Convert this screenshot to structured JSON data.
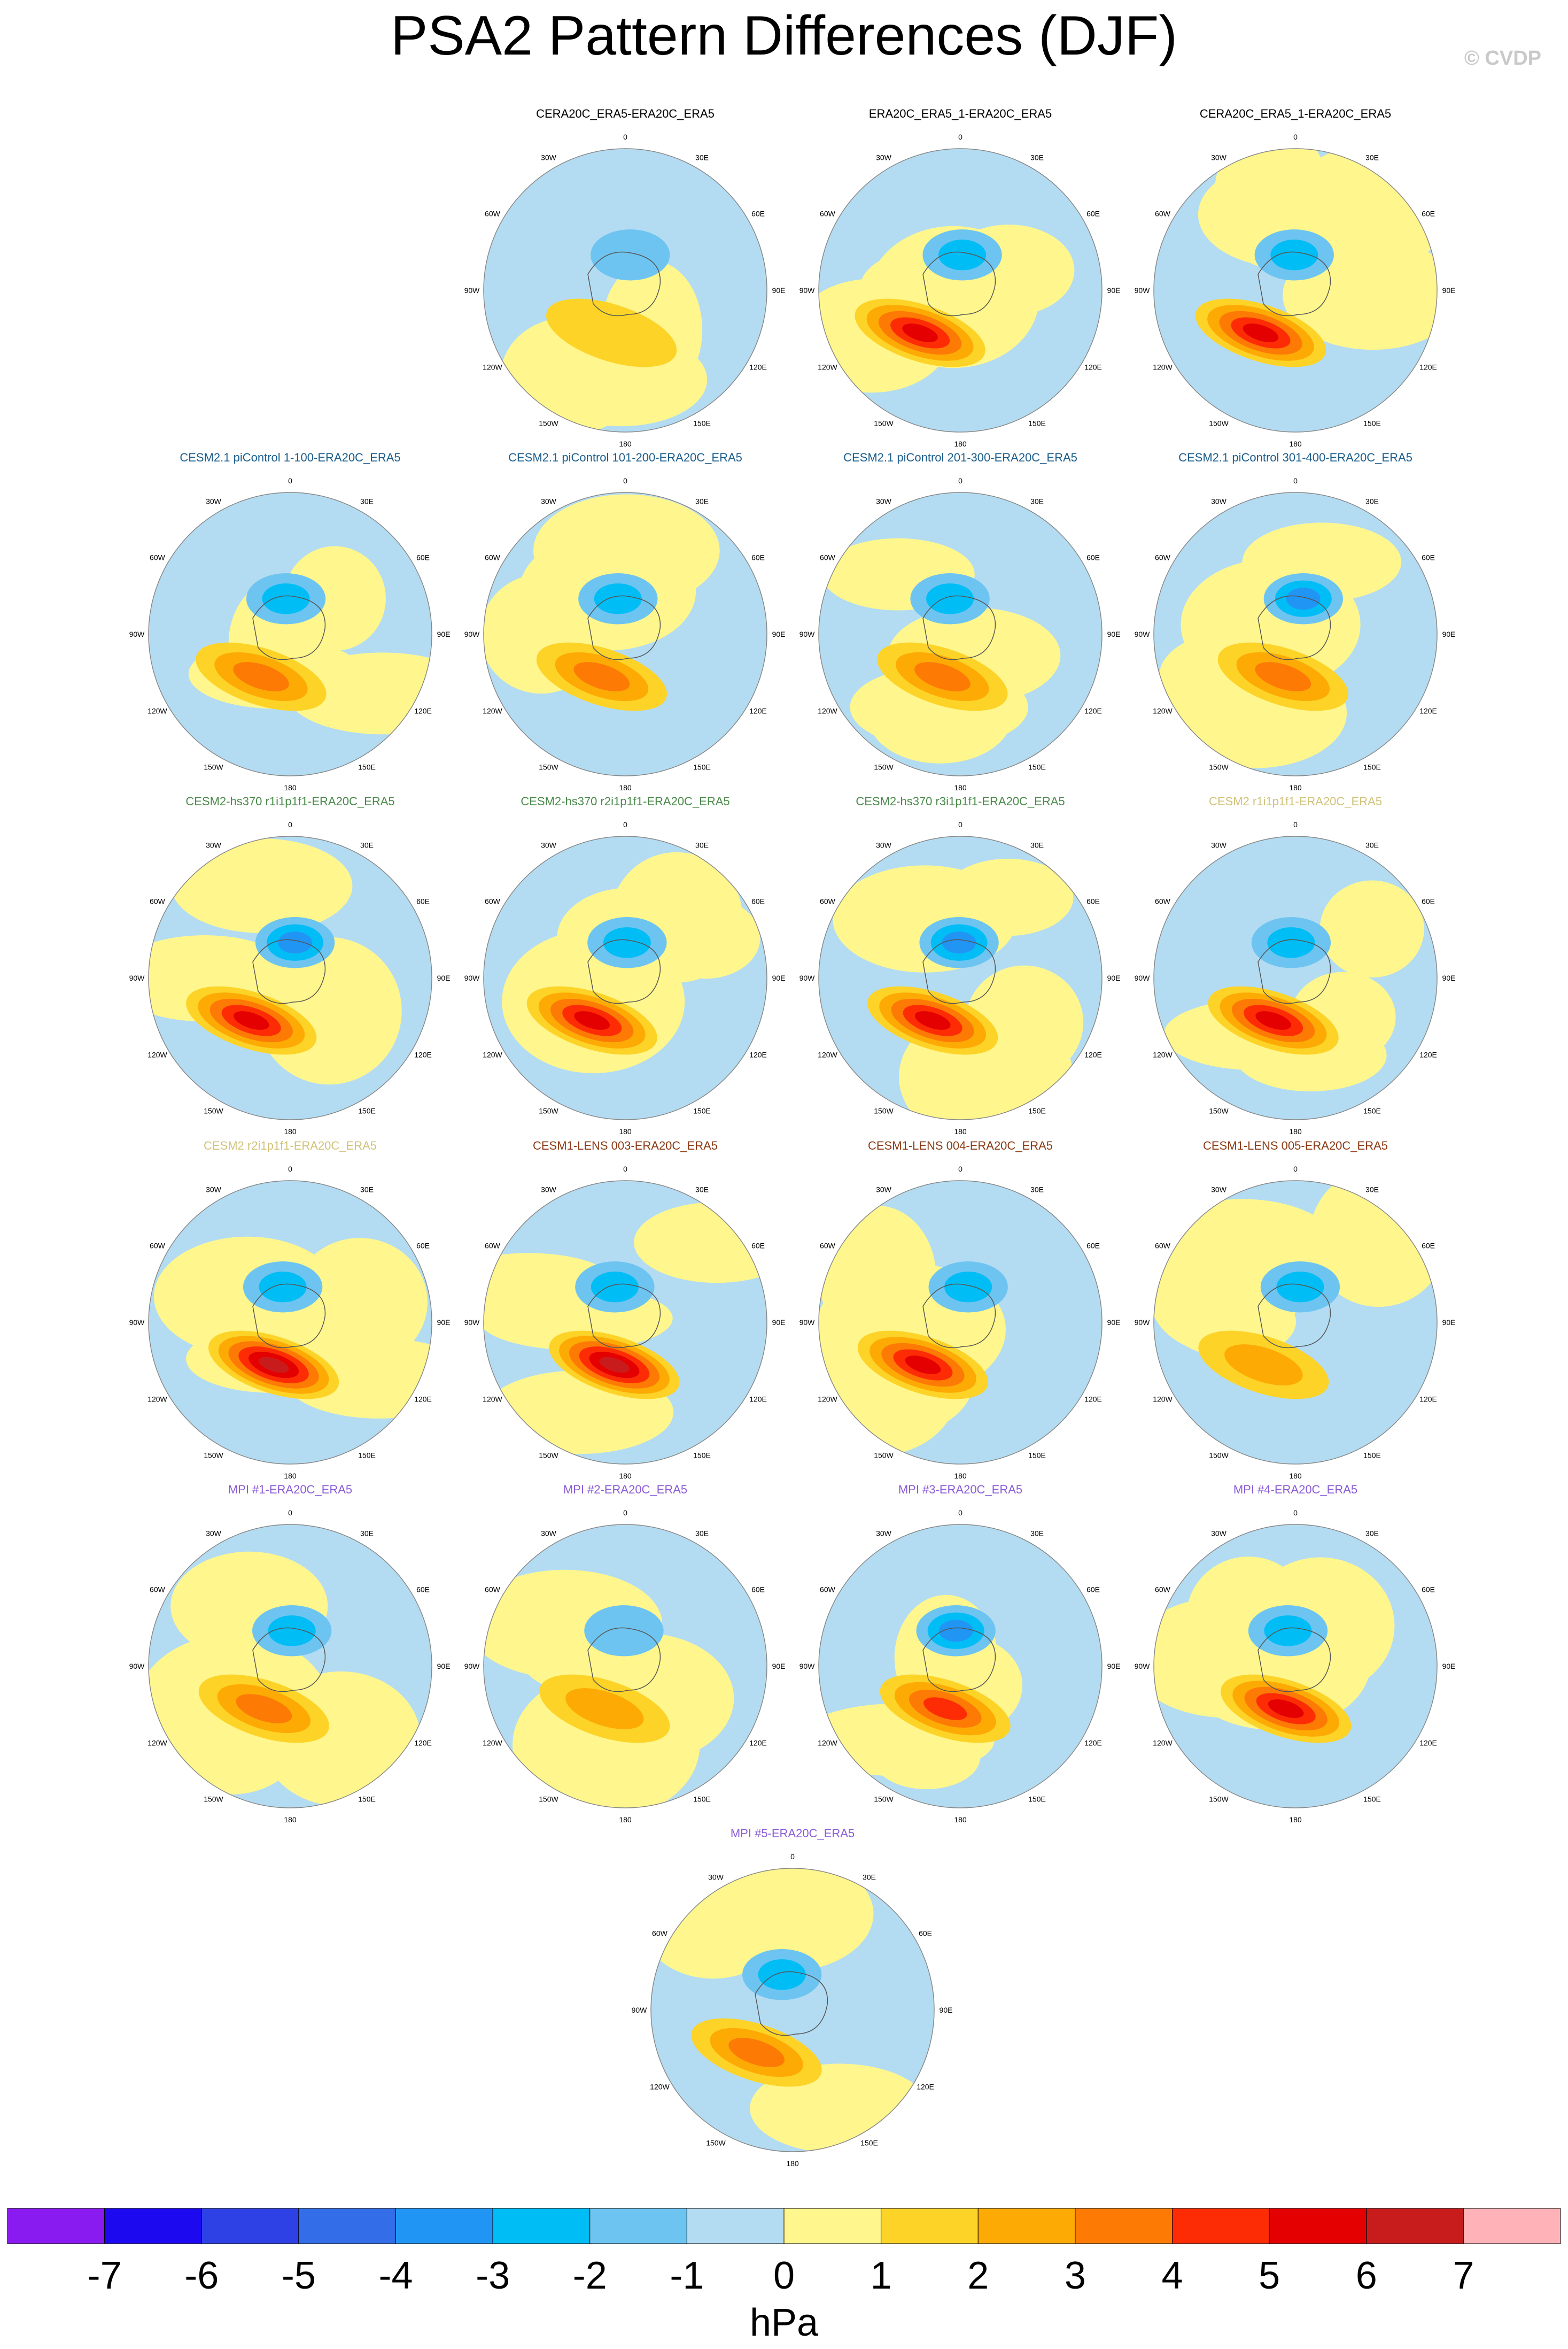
{
  "title": "PSA2 Pattern Differences (DJF)",
  "watermark": "© CVDP",
  "map_labels": {
    "top": "0",
    "upper_left": "30W",
    "upper_right": "30E",
    "left_up": "60W",
    "right_up": "60E",
    "left": "90W",
    "right": "90E",
    "left_down": "120W",
    "right_down": "120E",
    "lower_left": "150W",
    "lower_right": "150E",
    "bottom": "180"
  },
  "colorbar": {
    "unit": "hPa",
    "tick_labels": [
      "-7",
      "-6",
      "-5",
      "-4",
      "-3",
      "-2",
      "-1",
      "0",
      "1",
      "2",
      "3",
      "4",
      "5",
      "6",
      "7"
    ],
    "colors": [
      "#8a1bf0",
      "#1d09f0",
      "#2e41e4",
      "#336ee8",
      "#2195f3",
      "#00bdf6",
      "#6ec4f0",
      "#b3dcf2",
      "#fff68d",
      "#fdd327",
      "#fdaa05",
      "#fd7a05",
      "#fd2c05",
      "#e40000",
      "#c81c1c",
      "#ffb3b8"
    ],
    "levels": [
      -7,
      -6,
      -5,
      -4,
      -3,
      -2,
      -1,
      0,
      1,
      2,
      3,
      4,
      5,
      6,
      7
    ]
  },
  "chart_data": {
    "type": "heatmap",
    "title": "PSA2 Pattern Differences (DJF)",
    "projection": "south polar stereographic",
    "variable": "PSA2 pattern difference",
    "season": "DJF",
    "unit": "hPa",
    "colorbar_range": [
      -7,
      7
    ],
    "colorbar_interval": 1,
    "panels": [
      {
        "title": "CERA20C_ERA5-ERA20C_ERA5",
        "title_color": "#000000",
        "approx_min": -1,
        "approx_max": 1
      },
      {
        "title": "ERA20C_ERA5_1-ERA20C_ERA5",
        "title_color": "#000000",
        "approx_min": -2,
        "approx_max": 5
      },
      {
        "title": "CERA20C_ERA5_1-ERA20C_ERA5",
        "title_color": "#000000",
        "approx_min": -2,
        "approx_max": 5
      },
      {
        "title": "CESM2.1 piControl 1-100-ERA20C_ERA5",
        "title_color": "#1a5d8c",
        "approx_min": -2,
        "approx_max": 3
      },
      {
        "title": "CESM2.1 piControl 101-200-ERA20C_ERA5",
        "title_color": "#1a5d8c",
        "approx_min": -2,
        "approx_max": 3
      },
      {
        "title": "CESM2.1 piControl 201-300-ERA20C_ERA5",
        "title_color": "#1a5d8c",
        "approx_min": -2,
        "approx_max": 3
      },
      {
        "title": "CESM2.1 piControl 301-400-ERA20C_ERA5",
        "title_color": "#1a5d8c",
        "approx_min": -3,
        "approx_max": 3
      },
      {
        "title": "CESM2-hs370 r1i1p1f1-ERA20C_ERA5",
        "title_color": "#4a8a4a",
        "approx_min": -3,
        "approx_max": 5
      },
      {
        "title": "CESM2-hs370 r2i1p1f1-ERA20C_ERA5",
        "title_color": "#4a8a4a",
        "approx_min": -2,
        "approx_max": 5
      },
      {
        "title": "CESM2-hs370 r3i1p1f1-ERA20C_ERA5",
        "title_color": "#4a8a4a",
        "approx_min": -3,
        "approx_max": 5
      },
      {
        "title": "CESM2 r1i1p1f1-ERA20C_ERA5",
        "title_color": "#d1c27a",
        "approx_min": -2,
        "approx_max": 5
      },
      {
        "title": "CESM2 r2i1p1f1-ERA20C_ERA5",
        "title_color": "#d1c27a",
        "approx_min": -2,
        "approx_max": 6
      },
      {
        "title": "CESM1-LENS 003-ERA20C_ERA5",
        "title_color": "#8a3a14",
        "approx_min": -2,
        "approx_max": 6
      },
      {
        "title": "CESM1-LENS 004-ERA20C_ERA5",
        "title_color": "#8a3a14",
        "approx_min": -2,
        "approx_max": 5
      },
      {
        "title": "CESM1-LENS 005-ERA20C_ERA5",
        "title_color": "#8a3a14",
        "approx_min": -2,
        "approx_max": 2
      },
      {
        "title": "MPI #1-ERA20C_ERA5",
        "title_color": "#8a5cd6",
        "approx_min": -2,
        "approx_max": 3
      },
      {
        "title": "MPI #2-ERA20C_ERA5",
        "title_color": "#8a5cd6",
        "approx_min": -1,
        "approx_max": 2
      },
      {
        "title": "MPI #3-ERA20C_ERA5",
        "title_color": "#8a5cd6",
        "approx_min": -3,
        "approx_max": 4
      },
      {
        "title": "MPI #4-ERA20C_ERA5",
        "title_color": "#8a5cd6",
        "approx_min": -2,
        "approx_max": 5
      },
      {
        "title": "MPI #5-ERA20C_ERA5",
        "title_color": "#8a5cd6",
        "approx_min": -2,
        "approx_max": 3
      }
    ]
  }
}
